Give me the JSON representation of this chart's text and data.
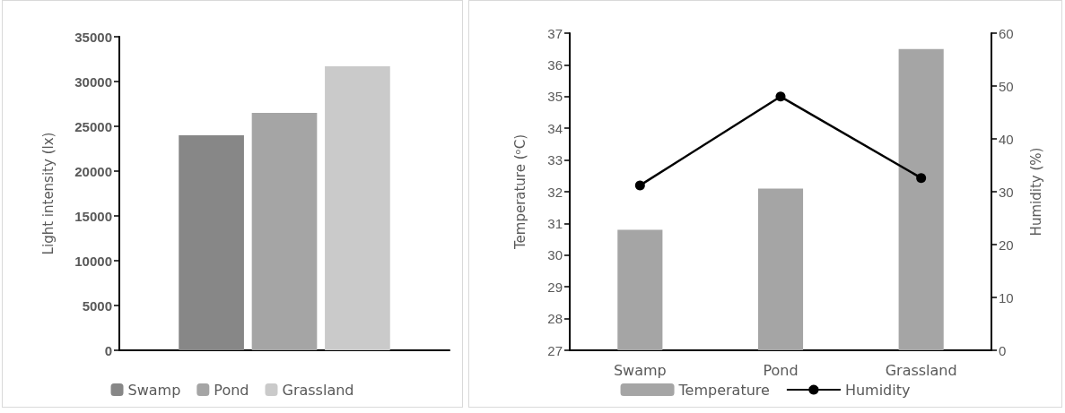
{
  "chart_data": [
    {
      "type": "bar",
      "ylabel": "Light intensity (lx)",
      "categories": [
        null
      ],
      "series": [
        {
          "name": "Swamp",
          "color": "#878787",
          "values": [
            24000
          ]
        },
        {
          "name": "Pond",
          "color": "#a5a5a5",
          "values": [
            26500
          ]
        },
        {
          "name": "Grassland",
          "color": "#cacaca",
          "values": [
            31700
          ]
        }
      ],
      "ylim": [
        0,
        35000
      ],
      "yticks": [
        0,
        5000,
        10000,
        15000,
        20000,
        25000,
        30000,
        35000
      ],
      "grid": false,
      "legend": "bottom"
    },
    {
      "type": "bar",
      "ylabel": "Temperature (ᵒC)",
      "y2label": "Humidity (%)",
      "categories": [
        "Swamp",
        "Pond",
        "Grassland"
      ],
      "series": [
        {
          "name": "Temperature",
          "color": "#a5a5a5",
          "values": [
            30.8,
            32.1,
            36.5
          ]
        },
        {
          "name": "Humidity",
          "type": "line",
          "axis": "y2",
          "color": "#000000",
          "marker": "circle",
          "values": [
            31.2,
            48,
            32.6
          ]
        }
      ],
      "ylim": [
        27,
        37
      ],
      "yticks": [
        27,
        28,
        29,
        30,
        31,
        32,
        33,
        34,
        35,
        36,
        37
      ],
      "y2lim": [
        0,
        60
      ],
      "y2ticks": [
        0,
        10,
        20,
        30,
        40,
        50,
        60
      ],
      "grid": false,
      "legend": "bottom"
    }
  ]
}
